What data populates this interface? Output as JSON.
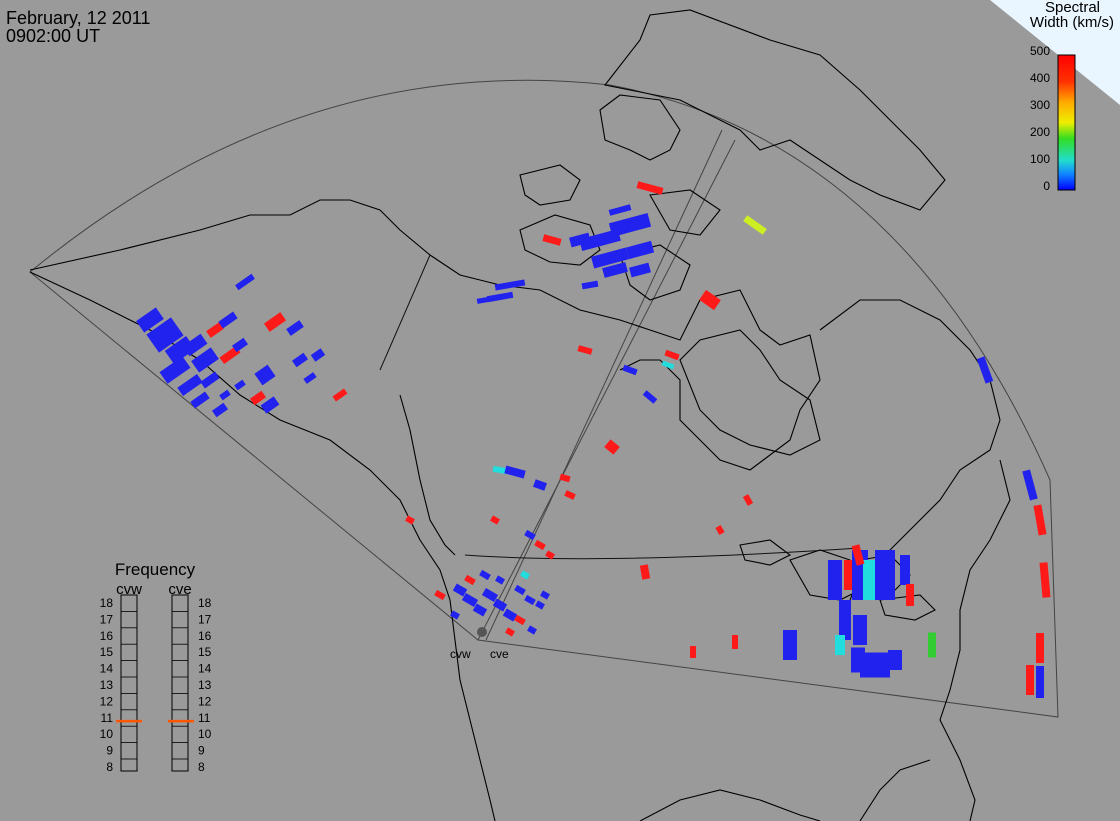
{
  "header": {
    "date": "February, 12 2011",
    "time": "0902:00 UT"
  },
  "colorbar": {
    "title_line1": "Spectral",
    "title_line2": "Width (km/s)",
    "ticks": [
      "500",
      "400",
      "300",
      "200",
      "100",
      "0"
    ]
  },
  "stations": {
    "cvw": "cvw",
    "cve": "cve"
  },
  "frequency": {
    "title": "Frequency",
    "col1": "cvw",
    "col2": "cve",
    "ticks": [
      "18",
      "17",
      "16",
      "15",
      "14",
      "13",
      "12",
      "11",
      "10",
      "9",
      "8"
    ],
    "cvw_value_mhz": 10.8,
    "cve_value_mhz": 10.8
  },
  "colors": {
    "background": "#9a9a9a",
    "coast": "#000000",
    "fov": "#555555",
    "low": "#2222ee",
    "high": "#ff1a1a",
    "cyan": "#22dddd",
    "green": "#33cc33",
    "yellowgreen": "#ccee22",
    "freq_marker": "#ff5500"
  }
}
